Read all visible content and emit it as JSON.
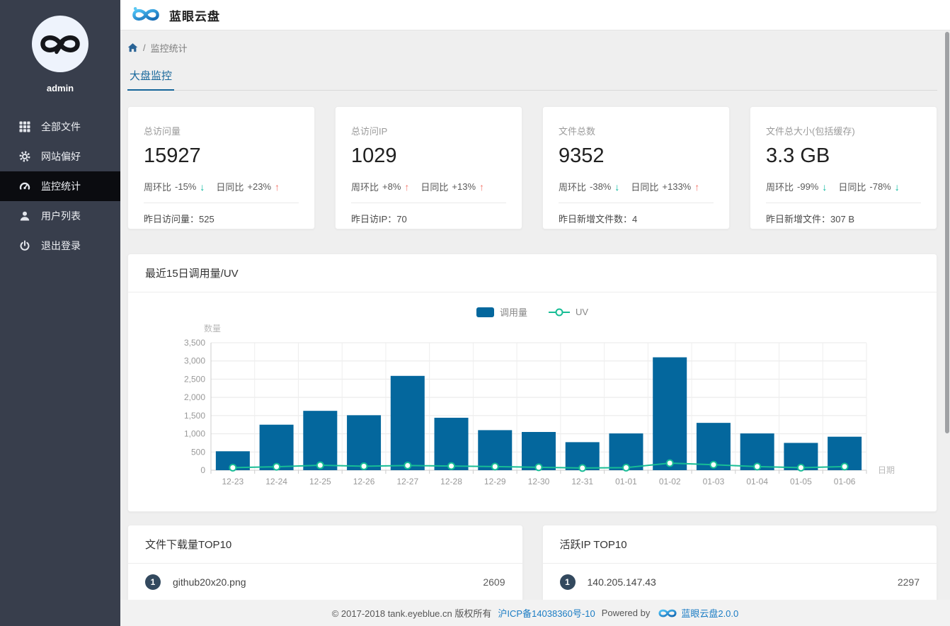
{
  "header": {
    "title": "蓝眼云盘"
  },
  "sidebar": {
    "username": "admin",
    "items": [
      {
        "label": "全部文件",
        "icon": "grid-icon",
        "active": false
      },
      {
        "label": "网站偏好",
        "icon": "gear-icon",
        "active": false
      },
      {
        "label": "监控统计",
        "icon": "gauge-icon",
        "active": true
      },
      {
        "label": "用户列表",
        "icon": "user-icon",
        "active": false
      },
      {
        "label": "退出登录",
        "icon": "power-icon",
        "active": false
      }
    ]
  },
  "breadcrumb": {
    "separator": "/",
    "current": "监控统计"
  },
  "tabs": [
    {
      "label": "大盘监控",
      "active": true
    }
  ],
  "stats": [
    {
      "label": "总访问量",
      "value": "15927",
      "wow_label": "周环比",
      "wow_value": "-15%",
      "wow_dir": "down",
      "yoy_label": "日同比",
      "yoy_value": "+23%",
      "yoy_dir": "up",
      "detail_label": "昨日访问量：",
      "detail_value": "525"
    },
    {
      "label": "总访问IP",
      "value": "1029",
      "wow_label": "周环比",
      "wow_value": "+8%",
      "wow_dir": "up",
      "yoy_label": "日同比",
      "yoy_value": "+13%",
      "yoy_dir": "up",
      "detail_label": "昨日访IP：",
      "detail_value": "70"
    },
    {
      "label": "文件总数",
      "value": "9352",
      "wow_label": "周环比",
      "wow_value": "-38%",
      "wow_dir": "down",
      "yoy_label": "日同比",
      "yoy_value": "+133%",
      "yoy_dir": "up",
      "detail_label": "昨日新增文件数：",
      "detail_value": "4"
    },
    {
      "label": "文件总大小(包括缓存)",
      "value": "3.3 GB",
      "wow_label": "周环比",
      "wow_value": "-99%",
      "wow_dir": "down",
      "yoy_label": "日同比",
      "yoy_value": "-78%",
      "yoy_dir": "down",
      "detail_label": "昨日新增文件：",
      "detail_value": "307 B"
    }
  ],
  "chart_card": {
    "title": "最近15日调用量/UV"
  },
  "chart_data": {
    "type": "bar",
    "categories": [
      "12-23",
      "12-24",
      "12-25",
      "12-26",
      "12-27",
      "12-28",
      "12-29",
      "12-30",
      "12-31",
      "01-01",
      "01-02",
      "01-03",
      "01-04",
      "01-05",
      "01-06"
    ],
    "series": [
      {
        "name": "调用量",
        "type": "bar",
        "color": "#04679d",
        "values": [
          520,
          1250,
          1630,
          1510,
          2590,
          1440,
          1100,
          1050,
          770,
          1010,
          3100,
          1300,
          1010,
          750,
          920
        ]
      },
      {
        "name": "UV",
        "type": "line",
        "color": "#17bd95",
        "values": [
          70,
          95,
          135,
          110,
          130,
          115,
          100,
          80,
          60,
          70,
          195,
          150,
          100,
          70,
          100
        ]
      }
    ],
    "title": "最近15日调用量/UV",
    "xlabel": "日期",
    "ylabel": "数量",
    "ylim": [
      0,
      3500
    ],
    "ytick_step": 500,
    "grid": true,
    "legend_position": "top-center"
  },
  "top_lists": [
    {
      "title": "文件下载量TOP10",
      "items": [
        {
          "rank": "1",
          "name": "github20x20.png",
          "value": "2609"
        }
      ]
    },
    {
      "title": "活跃IP TOP10",
      "items": [
        {
          "rank": "1",
          "name": "140.205.147.43",
          "value": "2297"
        }
      ]
    }
  ],
  "footer": {
    "copyright": "© 2017-2018 tank.eyeblue.cn 版权所有",
    "icp": "沪ICP备14038360号-10",
    "powered_by": "Powered by",
    "product": "蓝眼云盘2.0.0"
  },
  "colors": {
    "accent_blue": "#16669a",
    "sidebar_bg": "#383e4c",
    "sidebar_active_bg": "#0b0c10",
    "bar_blue": "#04679d",
    "line_teal": "#17bd95",
    "trend_up_orange": "#f4776b",
    "trend_down_teal": "#00b79b",
    "axis_label_gray": "#999999"
  }
}
